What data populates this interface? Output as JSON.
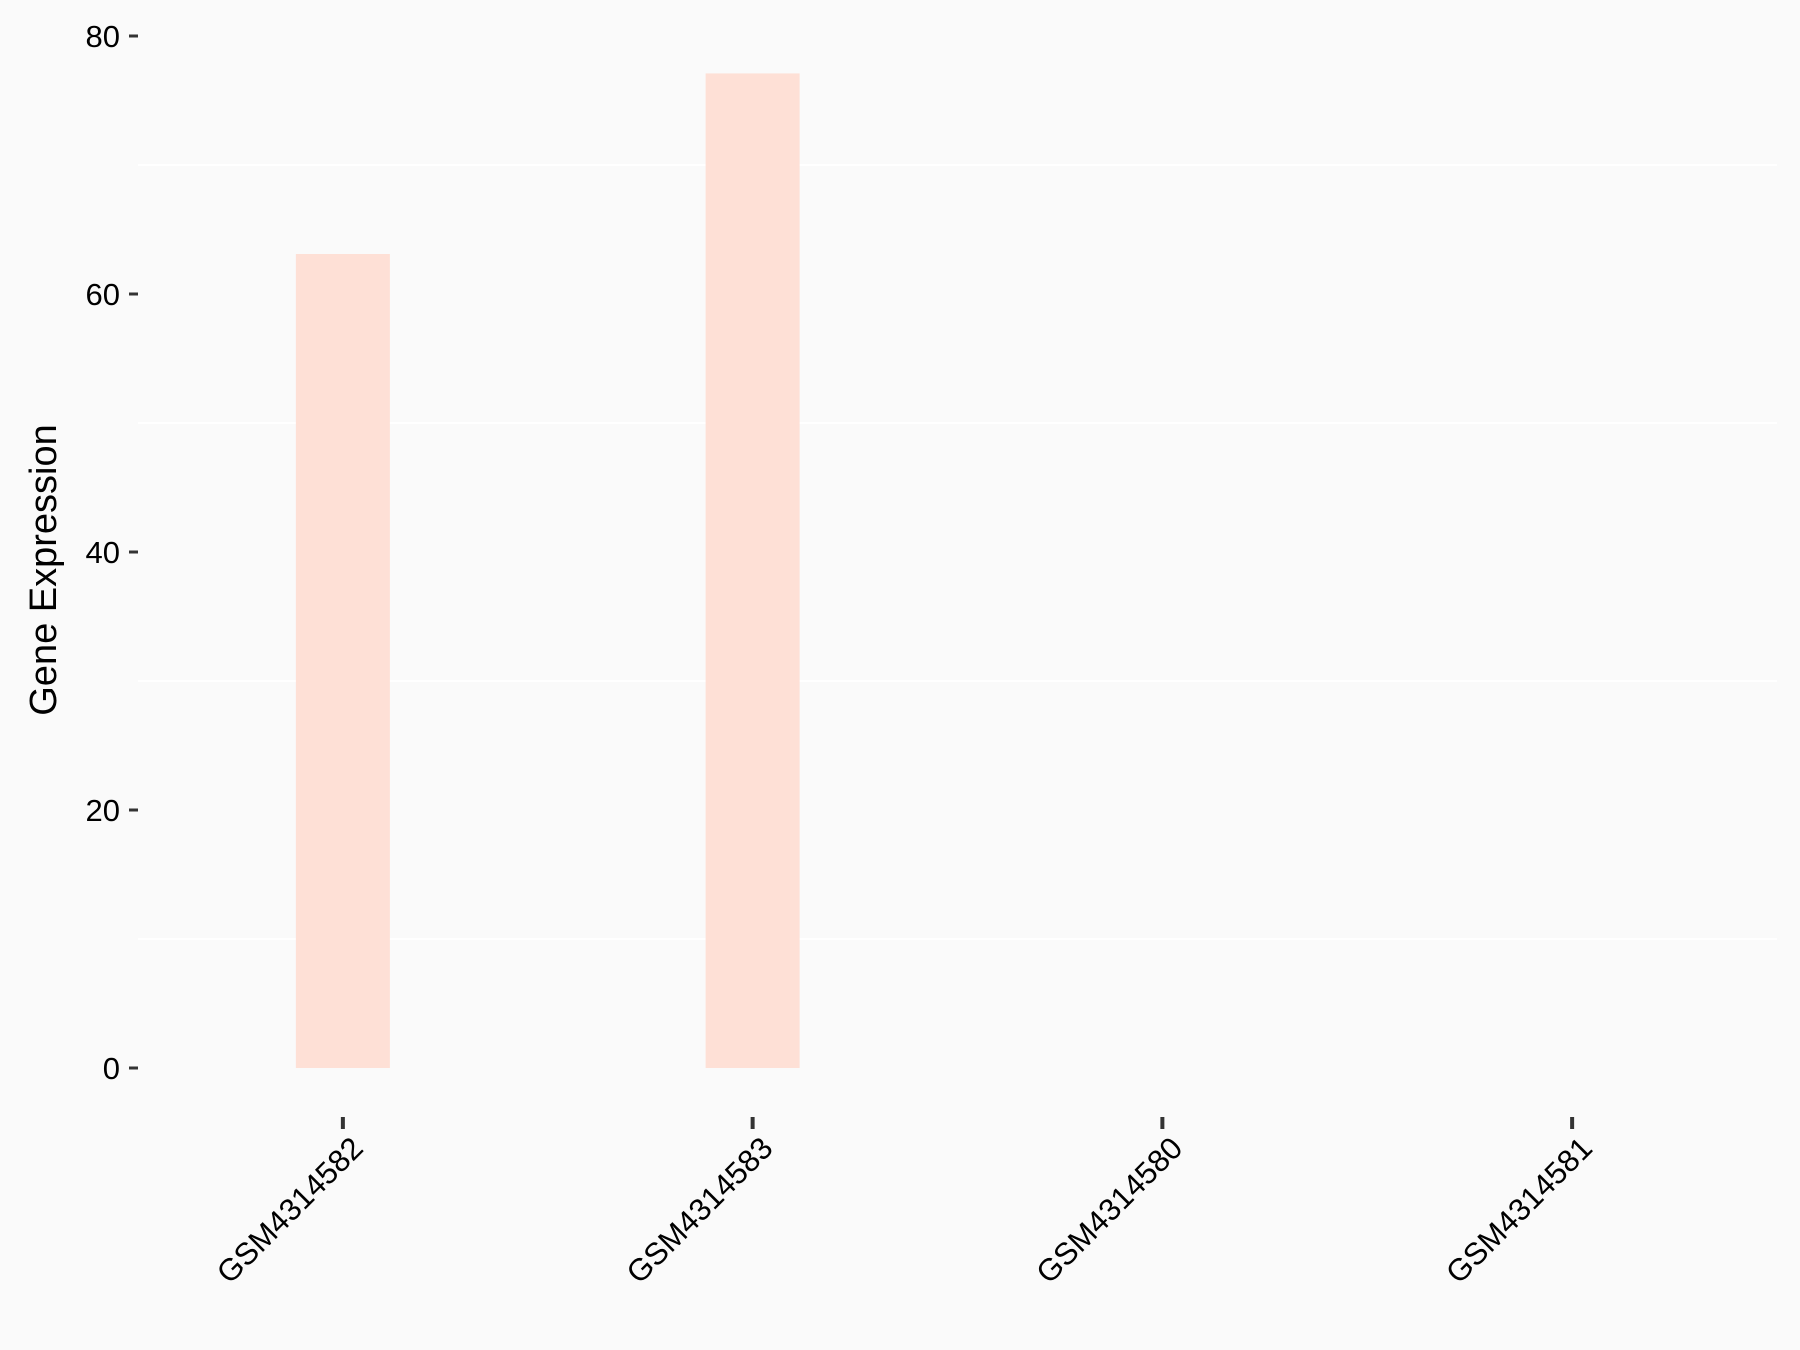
{
  "chart_data": {
    "type": "bar",
    "title": "",
    "xlabel": "",
    "ylabel": "Gene Expression",
    "categories": [
      "GSM4314582",
      "GSM4314583",
      "GSM4314580",
      "GSM4314581"
    ],
    "values": [
      63.1,
      77.1,
      0,
      0
    ],
    "ylim": [
      0,
      80
    ],
    "yticks": [
      0,
      20,
      40,
      60,
      80
    ],
    "grid": "minor horizontal",
    "legend": "none",
    "bar_color": "#fee0d6",
    "background": "#fafafa"
  }
}
